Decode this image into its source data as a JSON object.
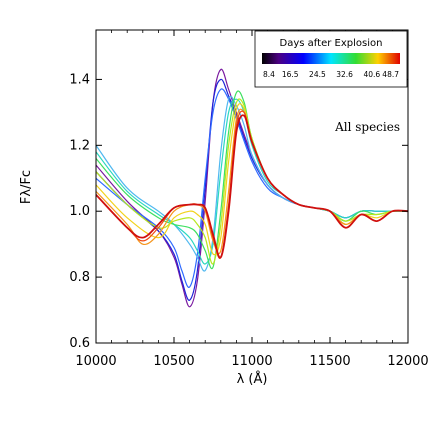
{
  "chart_data": {
    "type": "line",
    "xlabel": "λ (Å)",
    "ylabel": "Fλ/Fc",
    "xlim": [
      10000,
      12000
    ],
    "ylim": [
      0.6,
      1.55
    ],
    "x_ticks": [
      10000,
      10500,
      11000,
      11500,
      12000
    ],
    "x_tick_labels": [
      "10000",
      "10500",
      "11000",
      "11500",
      "12000"
    ],
    "y_ticks": [
      0.6,
      0.8,
      1.0,
      1.2,
      1.4
    ],
    "y_tick_labels": [
      "0.6",
      "0.8",
      "1.0",
      "1.2",
      "1.4"
    ],
    "annotation": "All species",
    "legend": {
      "title": "Days after Explosion",
      "labels": [
        "8.4",
        "16.5",
        "24.5",
        "32.6",
        "40.6",
        "48.7"
      ]
    },
    "grid": false,
    "series": [
      {
        "day": 8.4,
        "color": "#7a1aa0",
        "x": [
          10000,
          10200,
          10400,
          10500,
          10550,
          10600,
          10650,
          10700,
          10750,
          10800,
          10850,
          10900,
          11000,
          11100,
          11200,
          11300,
          11400,
          11500,
          11600,
          11700,
          11800,
          11900,
          12000
        ],
        "y": [
          1.14,
          1.03,
          0.94,
          0.86,
          0.78,
          0.71,
          0.79,
          1.03,
          1.33,
          1.43,
          1.37,
          1.3,
          1.17,
          1.08,
          1.04,
          1.02,
          1.01,
          1.0,
          0.98,
          1.0,
          1.0,
          1.0,
          1.0
        ]
      },
      {
        "day": 12.0,
        "color": "#1e22d8",
        "x": [
          10000,
          10200,
          10400,
          10500,
          10550,
          10600,
          10650,
          10700,
          10750,
          10800,
          10850,
          10900,
          11000,
          11100,
          11200,
          11300,
          11400,
          11500,
          11600,
          11700,
          11800,
          11900,
          12000
        ],
        "y": [
          1.12,
          1.02,
          0.94,
          0.87,
          0.79,
          0.73,
          0.82,
          1.07,
          1.33,
          1.4,
          1.35,
          1.29,
          1.16,
          1.08,
          1.04,
          1.02,
          1.01,
          1.0,
          0.98,
          1.0,
          1.0,
          1.0,
          1.0
        ]
      },
      {
        "day": 16.5,
        "color": "#2f6bff",
        "x": [
          10000,
          10200,
          10400,
          10500,
          10550,
          10600,
          10650,
          10700,
          10750,
          10800,
          10850,
          10900,
          11000,
          11100,
          11200,
          11300,
          11400,
          11500,
          11600,
          11700,
          11800,
          11900,
          12000
        ],
        "y": [
          1.1,
          1.02,
          0.95,
          0.89,
          0.82,
          0.77,
          0.87,
          1.1,
          1.3,
          1.37,
          1.34,
          1.28,
          1.15,
          1.07,
          1.04,
          1.02,
          1.01,
          1.0,
          0.98,
          1.0,
          1.0,
          1.0,
          1.0
        ]
      },
      {
        "day": 20.5,
        "color": "#4fb8f0",
        "x": [
          10000,
          10200,
          10400,
          10500,
          10600,
          10650,
          10700,
          10750,
          10800,
          10850,
          10900,
          10950,
          11000,
          11100,
          11200,
          11300,
          11400,
          11500,
          11600,
          11700,
          11800,
          11900,
          12000
        ],
        "y": [
          1.2,
          1.07,
          1.0,
          0.96,
          0.9,
          0.86,
          0.82,
          0.92,
          1.18,
          1.34,
          1.32,
          1.26,
          1.17,
          1.08,
          1.04,
          1.02,
          1.01,
          1.0,
          0.98,
          1.0,
          1.0,
          1.0,
          1.0
        ]
      },
      {
        "day": 24.5,
        "color": "#2ad8c0",
        "x": [
          10000,
          10200,
          10400,
          10500,
          10600,
          10650,
          10700,
          10750,
          10800,
          10850,
          10900,
          10950,
          11000,
          11100,
          11200,
          11300,
          11400,
          11500,
          11600,
          11700,
          11800,
          11900,
          12000
        ],
        "y": [
          1.18,
          1.06,
          0.99,
          0.96,
          0.92,
          0.88,
          0.84,
          0.9,
          1.12,
          1.3,
          1.34,
          1.3,
          1.2,
          1.09,
          1.05,
          1.02,
          1.01,
          1.0,
          0.98,
          1.0,
          1.0,
          1.0,
          1.0
        ]
      },
      {
        "day": 28.5,
        "color": "#3ee060",
        "x": [
          10000,
          10200,
          10400,
          10500,
          10600,
          10650,
          10700,
          10750,
          10800,
          10850,
          10900,
          10950,
          11000,
          11100,
          11200,
          11300,
          11400,
          11500,
          11600,
          11700,
          11800,
          11900,
          12000
        ],
        "y": [
          1.16,
          1.05,
          0.98,
          0.96,
          0.95,
          0.93,
          0.88,
          0.83,
          1.0,
          1.24,
          1.36,
          1.33,
          1.22,
          1.1,
          1.05,
          1.02,
          1.01,
          1.0,
          0.97,
          1.0,
          0.99,
          1.0,
          1.0
        ]
      },
      {
        "day": 32.6,
        "color": "#b6e81e",
        "x": [
          10000,
          10200,
          10400,
          10500,
          10600,
          10650,
          10700,
          10750,
          10800,
          10850,
          10900,
          10950,
          11000,
          11100,
          11200,
          11300,
          11400,
          11500,
          11600,
          11700,
          11800,
          11900,
          12000
        ],
        "y": [
          1.12,
          1.02,
          0.95,
          0.97,
          0.98,
          0.96,
          0.92,
          0.84,
          0.96,
          1.2,
          1.33,
          1.32,
          1.22,
          1.1,
          1.05,
          1.02,
          1.01,
          1.0,
          0.97,
          0.99,
          0.99,
          1.0,
          1.0
        ]
      },
      {
        "day": 36.6,
        "color": "#f2d21a",
        "x": [
          10000,
          10200,
          10400,
          10500,
          10600,
          10650,
          10700,
          10750,
          10800,
          10850,
          10900,
          10950,
          11000,
          11100,
          11200,
          11300,
          11400,
          11500,
          11600,
          11700,
          11800,
          11900,
          12000
        ],
        "y": [
          1.08,
          0.98,
          0.92,
          0.98,
          1.0,
          0.99,
          0.96,
          0.87,
          0.92,
          1.15,
          1.31,
          1.31,
          1.21,
          1.1,
          1.05,
          1.02,
          1.01,
          1.0,
          0.96,
          0.99,
          0.98,
          1.0,
          1.0
        ]
      },
      {
        "day": 40.6,
        "color": "#f5951c",
        "x": [
          10000,
          10200,
          10300,
          10400,
          10500,
          10600,
          10650,
          10700,
          10750,
          10800,
          10850,
          10900,
          10950,
          11000,
          11100,
          11200,
          11300,
          11400,
          11500,
          11600,
          11700,
          11800,
          11900,
          12000
        ],
        "y": [
          1.06,
          0.96,
          0.9,
          0.93,
          1.0,
          1.02,
          1.02,
          1.0,
          0.91,
          0.88,
          1.06,
          1.28,
          1.3,
          1.21,
          1.1,
          1.05,
          1.02,
          1.01,
          1.0,
          0.96,
          0.99,
          0.97,
          1.0,
          1.0
        ]
      },
      {
        "day": 44.6,
        "color": "#f04a12",
        "x": [
          10000,
          10200,
          10300,
          10400,
          10500,
          10600,
          10650,
          10700,
          10750,
          10800,
          10850,
          10900,
          10950,
          11000,
          11100,
          11200,
          11300,
          11400,
          11500,
          11600,
          11700,
          11800,
          11900,
          12000
        ],
        "y": [
          1.05,
          0.95,
          0.91,
          0.95,
          1.01,
          1.02,
          1.02,
          1.01,
          0.92,
          0.86,
          1.02,
          1.26,
          1.3,
          1.21,
          1.1,
          1.05,
          1.02,
          1.01,
          1.0,
          0.95,
          0.99,
          0.97,
          1.0,
          1.0
        ]
      },
      {
        "day": 48.7,
        "color": "#d01010",
        "x": [
          10000,
          10200,
          10300,
          10400,
          10500,
          10600,
          10650,
          10700,
          10750,
          10800,
          10850,
          10900,
          10950,
          11000,
          11100,
          11200,
          11300,
          11400,
          11500,
          11600,
          11700,
          11800,
          11900,
          12000
        ],
        "y": [
          1.05,
          0.95,
          0.92,
          0.96,
          1.01,
          1.02,
          1.02,
          1.01,
          0.93,
          0.86,
          1.0,
          1.24,
          1.29,
          1.21,
          1.1,
          1.05,
          1.02,
          1.01,
          1.0,
          0.95,
          0.99,
          0.97,
          1.0,
          1.0
        ]
      }
    ]
  }
}
